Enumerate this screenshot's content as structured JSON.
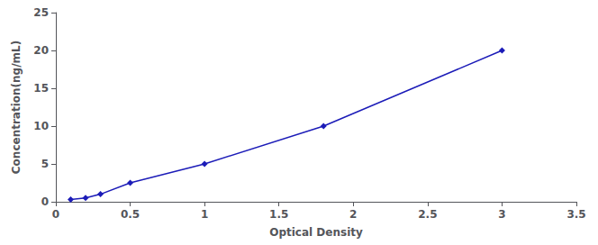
{
  "chart_data": {
    "type": "line",
    "x": [
      0.1,
      0.2,
      0.3,
      0.5,
      1.0,
      1.8,
      3.0
    ],
    "values": [
      0.3,
      0.5,
      1.0,
      2.5,
      5.0,
      10.0,
      20.0
    ],
    "color": "#1c1cb8",
    "marker": "diamond",
    "xlabel": "Optical Density",
    "ylabel": "Concentration(ng/mL)",
    "xlim": [
      0,
      3.5
    ],
    "ylim": [
      0,
      25
    ],
    "xticks": [
      0,
      0.5,
      1,
      1.5,
      2,
      2.5,
      3,
      3.5
    ],
    "yticks": [
      0,
      5,
      10,
      15,
      20,
      25
    ],
    "grid": false
  }
}
